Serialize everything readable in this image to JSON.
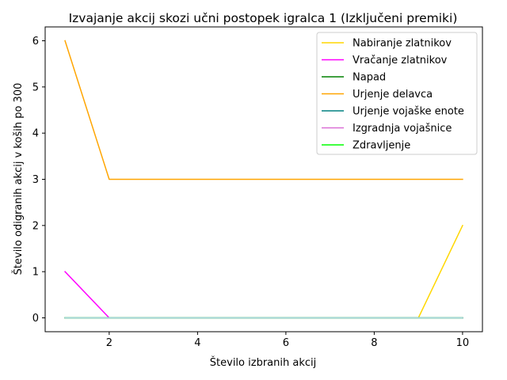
{
  "chart_data": {
    "type": "line",
    "title": "Izvajanje akcij skozi učni postopek igralca 1 (Izključeni premiki)",
    "xlabel": "Število izbranih akcij",
    "ylabel": "Število odigranih akcij v koših po 300",
    "x": [
      1,
      2,
      3,
      4,
      5,
      6,
      7,
      8,
      9,
      10
    ],
    "xlim": [
      0.55,
      10.45
    ],
    "ylim": [
      -0.3,
      6.3
    ],
    "xticks": [
      2,
      4,
      6,
      8,
      10
    ],
    "yticks": [
      0,
      1,
      2,
      3,
      4,
      5,
      6
    ],
    "grid": false,
    "legend_position": "top-right",
    "series": [
      {
        "name": "Nabiranje zlatnikov",
        "color": "#FFD700",
        "values": [
          0,
          0,
          0,
          0,
          0,
          0,
          0,
          0,
          0,
          2
        ]
      },
      {
        "name": "Vračanje zlatnikov",
        "color": "#FF00FF",
        "values": [
          1,
          0,
          0,
          0,
          0,
          0,
          0,
          0,
          0,
          0
        ]
      },
      {
        "name": "Napad",
        "color": "#008000",
        "values": [
          0,
          0,
          0,
          0,
          0,
          0,
          0,
          0,
          0,
          0
        ]
      },
      {
        "name": "Urjenje delavca",
        "color": "#FFA500",
        "values": [
          6,
          3,
          3,
          3,
          3,
          3,
          3,
          3,
          3,
          3
        ]
      },
      {
        "name": "Urjenje vojaške enote",
        "color": "#008080",
        "values": [
          0,
          0,
          0,
          0,
          0,
          0,
          0,
          0,
          0,
          0
        ]
      },
      {
        "name": "Izgradnja vojašnice",
        "color": "#DA70D6",
        "values": [
          0,
          0,
          0,
          0,
          0,
          0,
          0,
          0,
          0,
          0
        ]
      },
      {
        "name": "Zdravljenje",
        "color": "#00FF00",
        "values": [
          0,
          0,
          0,
          0,
          0,
          0,
          0,
          0,
          0,
          0
        ]
      },
      {
        "name": "",
        "color": "#ADD8E6",
        "values": [
          0,
          0,
          0,
          0,
          0,
          0,
          0,
          0,
          0,
          0
        ]
      }
    ]
  }
}
